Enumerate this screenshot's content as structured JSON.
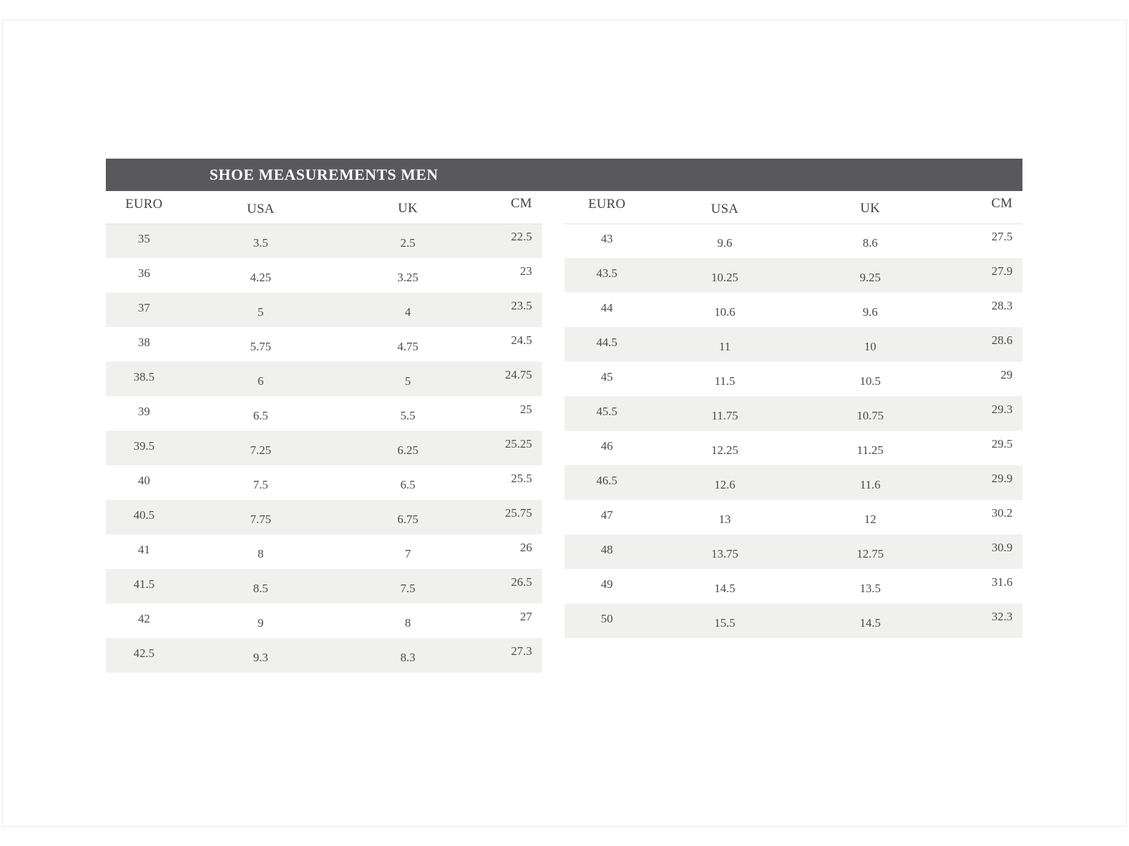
{
  "title_band": {
    "label": "SHOE MEASUREMENTS MEN"
  },
  "colors": {
    "band_background": "#59595b",
    "band_text": "#ffffff",
    "row_shade": "#f0f0ef",
    "text_color": "#4a4a4a",
    "frame_border": "#e9e9e9"
  },
  "chart_data": [
    {
      "type": "table",
      "title": "SHOE MEASUREMENTS MEN",
      "columns": [
        "EURO",
        "USA",
        "UK",
        "CM"
      ],
      "rows": [
        [
          "35",
          "3.5",
          "2.5",
          "22.5"
        ],
        [
          "36",
          "4.25",
          "3.25",
          "23"
        ],
        [
          "37",
          "5",
          "4",
          "23.5"
        ],
        [
          "38",
          "5.75",
          "4.75",
          "24.5"
        ],
        [
          "38.5",
          "6",
          "5",
          "24.75"
        ],
        [
          "39",
          "6.5",
          "5.5",
          "25"
        ],
        [
          "39.5",
          "7.25",
          "6.25",
          "25.25"
        ],
        [
          "40",
          "7.5",
          "6.5",
          "25.5"
        ],
        [
          "40.5",
          "7.75",
          "6.75",
          "25.75"
        ],
        [
          "41",
          "8",
          "7",
          "26"
        ],
        [
          "41.5",
          "8.5",
          "7.5",
          "26.5"
        ],
        [
          "42",
          "9",
          "8",
          "27"
        ],
        [
          "42.5",
          "9.3",
          "8.3",
          "27.3"
        ]
      ]
    },
    {
      "type": "table",
      "title": "SHOE MEASUREMENTS MEN",
      "columns": [
        "EURO",
        "USA",
        "UK",
        "CM"
      ],
      "rows": [
        [
          "43",
          "9.6",
          "8.6",
          "27.5"
        ],
        [
          "43.5",
          "10.25",
          "9.25",
          "27.9"
        ],
        [
          "44",
          "10.6",
          "9.6",
          "28.3"
        ],
        [
          "44.5",
          "11",
          "10",
          "28.6"
        ],
        [
          "45",
          "11.5",
          "10.5",
          "29"
        ],
        [
          "45.5",
          "11.75",
          "10.75",
          "29.3"
        ],
        [
          "46",
          "12.25",
          "11.25",
          "29.5"
        ],
        [
          "46.5",
          "12.6",
          "11.6",
          "29.9"
        ],
        [
          "47",
          "13",
          "12",
          "30.2"
        ],
        [
          "48",
          "13.75",
          "12.75",
          "30.9"
        ],
        [
          "49",
          "14.5",
          "13.5",
          "31.6"
        ],
        [
          "50",
          "15.5",
          "14.5",
          "32.3"
        ]
      ]
    }
  ]
}
